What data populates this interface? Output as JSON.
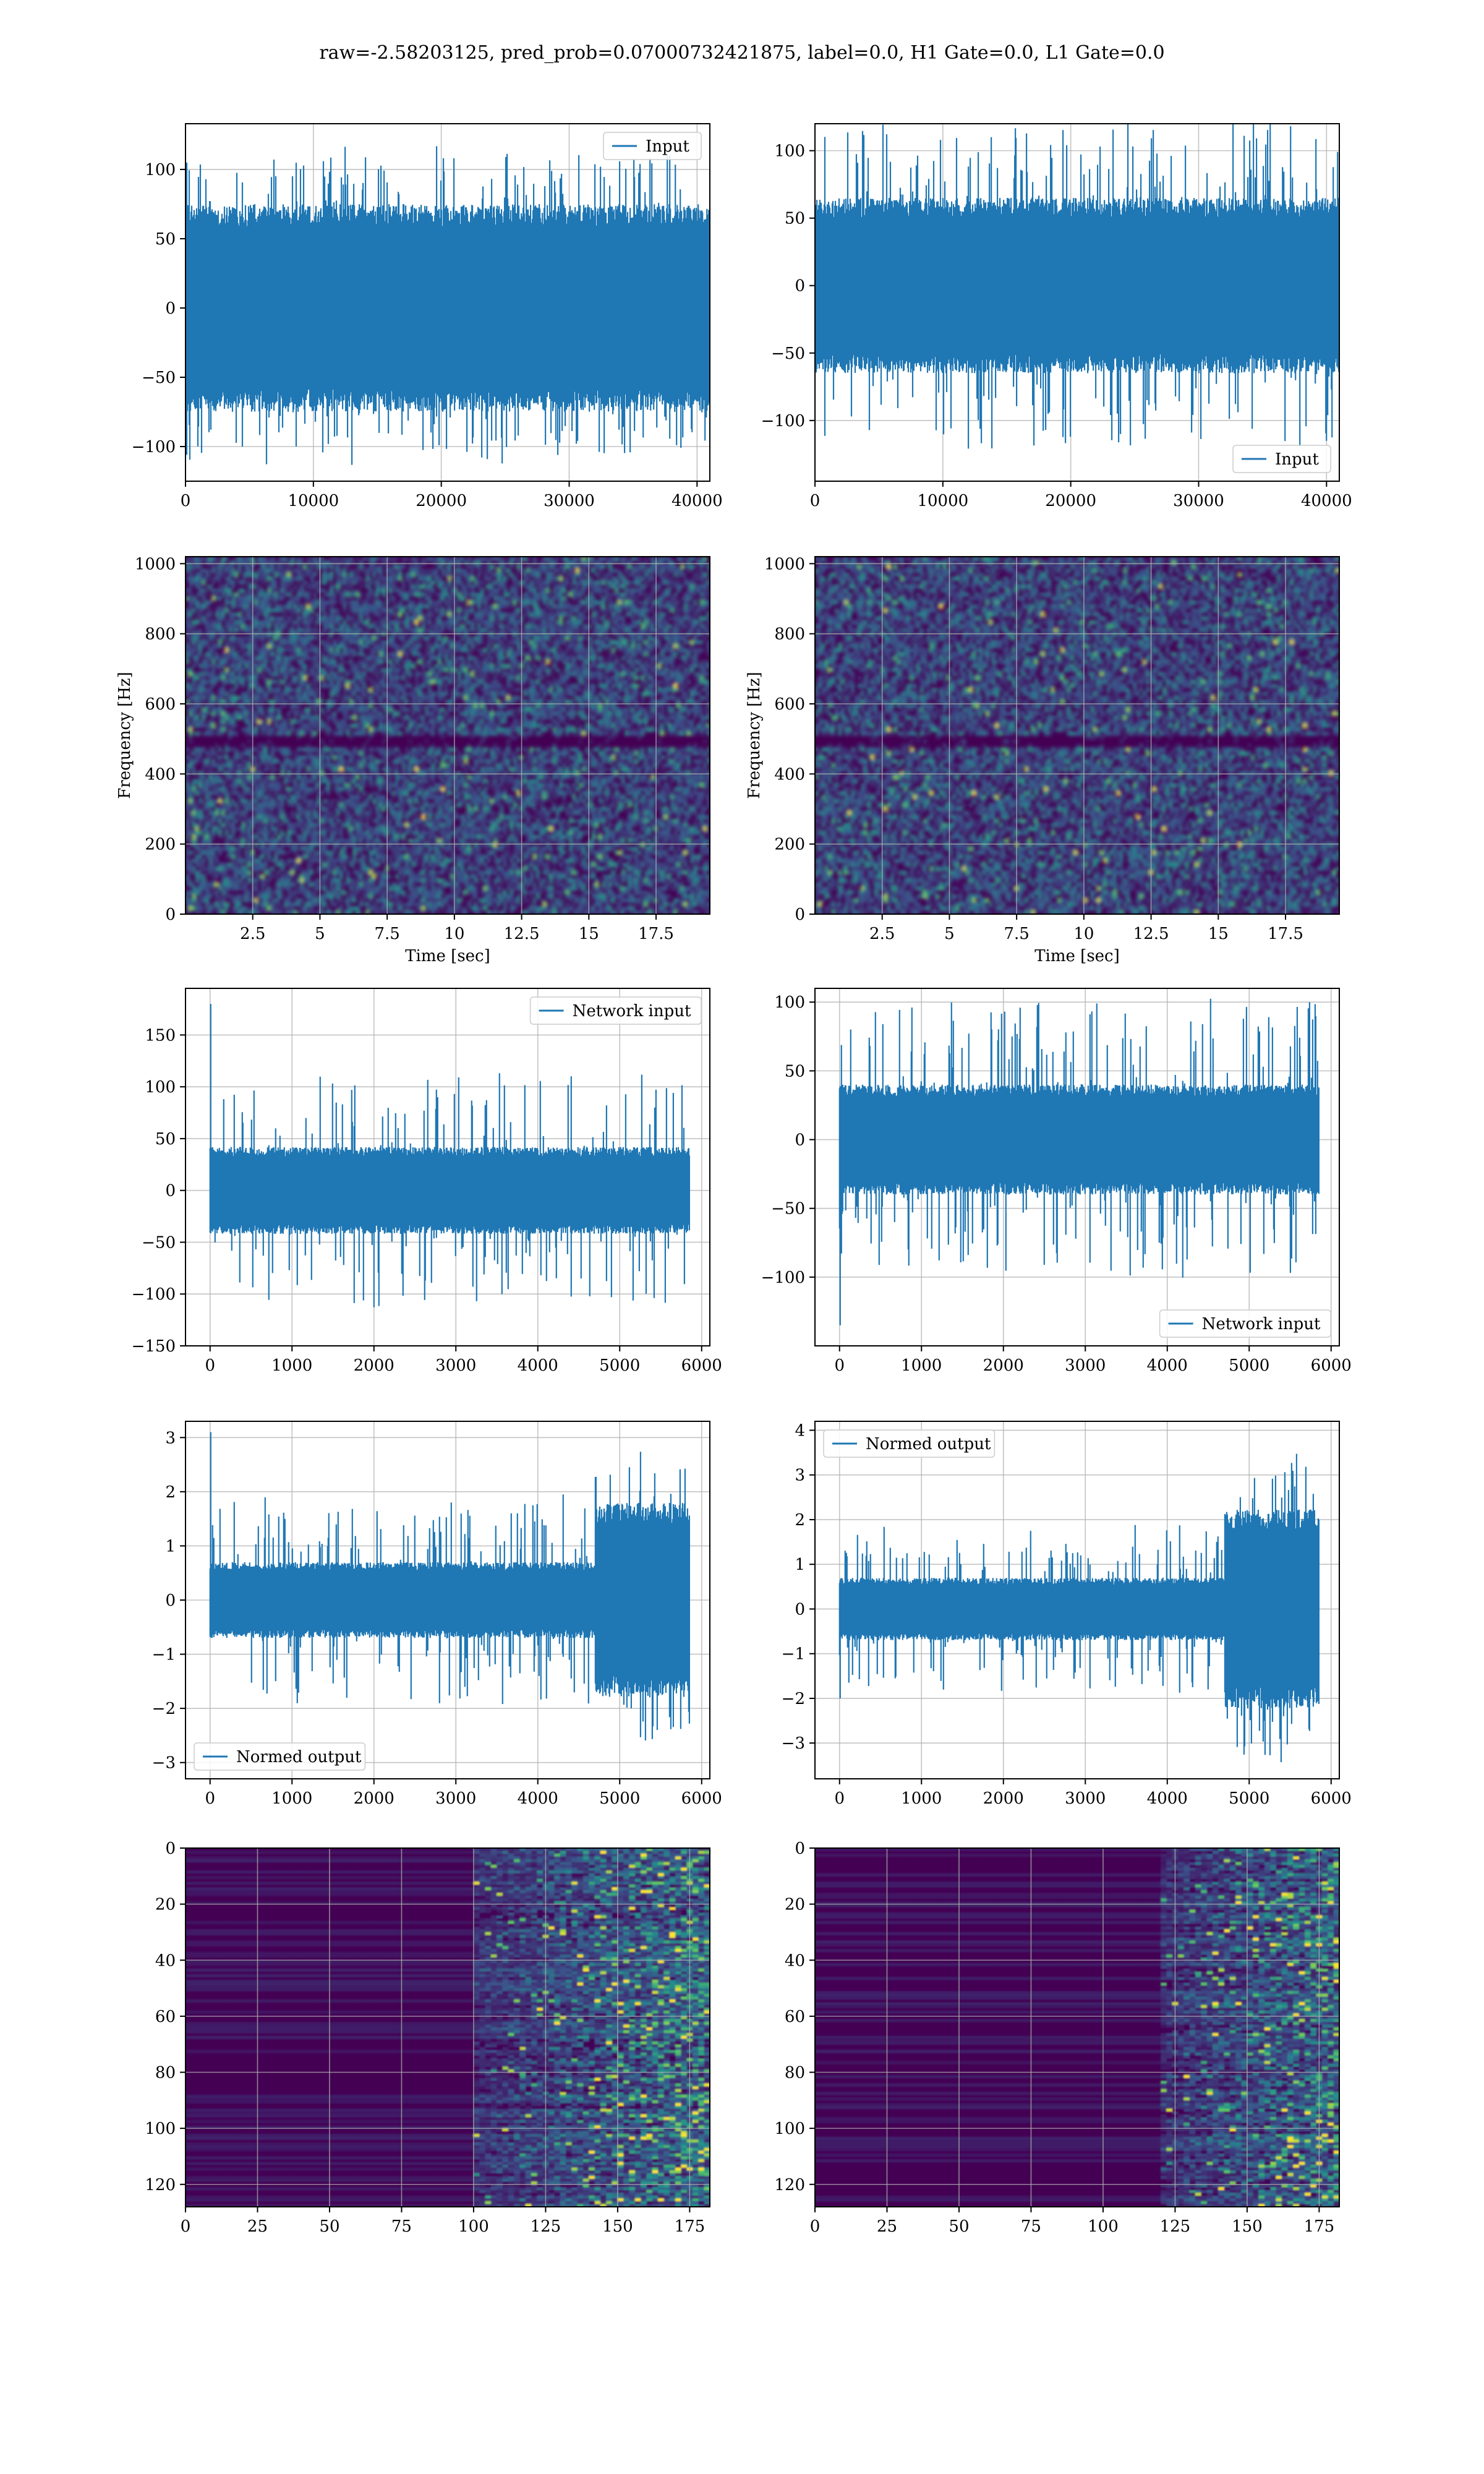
{
  "figure_title": "raw=-2.58203125, pred_prob=0.07000732421875, label=0.0, H1 Gate=0.0, L1 Gate=0.0",
  "colors": {
    "line": "#1f77b4",
    "viridis_bg": "#440154",
    "grid": "#b0b0b0"
  },
  "chart_data": [
    {
      "id": "input-left",
      "type": "line",
      "row": 0,
      "col": 0,
      "xlim": [
        0,
        41000
      ],
      "ylim": [
        -125,
        133
      ],
      "xticks": [
        0,
        10000,
        20000,
        30000,
        40000
      ],
      "yticks": [
        -100,
        -50,
        0,
        50,
        100
      ],
      "series": [
        {
          "name": "Input",
          "n_samples": 40960,
          "envelope_core": 75,
          "envelope_peak": 120
        }
      ],
      "legend": "top-right",
      "grid": true
    },
    {
      "id": "input-right",
      "type": "line",
      "row": 0,
      "col": 1,
      "xlim": [
        0,
        41000
      ],
      "ylim": [
        -145,
        120
      ],
      "xticks": [
        0,
        10000,
        20000,
        30000,
        40000
      ],
      "yticks": [
        -100,
        -50,
        0,
        50,
        100
      ],
      "series": [
        {
          "name": "Input",
          "n_samples": 40960,
          "envelope_core": 65,
          "envelope_peak": 130
        }
      ],
      "legend": "bottom-right",
      "grid": true
    },
    {
      "id": "spectrogram-left",
      "type": "heatmap",
      "row": 1,
      "col": 0,
      "xlabel": "Time [sec]",
      "ylabel": "Frequency [Hz]",
      "xlim": [
        0,
        19.5
      ],
      "ylim": [
        0,
        1020
      ],
      "xticks": [
        2.5,
        5.0,
        7.5,
        10.0,
        12.5,
        15.0,
        17.5
      ],
      "yticks": [
        0,
        200,
        400,
        600,
        800,
        1000
      ],
      "colormap": "viridis",
      "dark_band_hz": 500,
      "grid": true
    },
    {
      "id": "spectrogram-right",
      "type": "heatmap",
      "row": 1,
      "col": 1,
      "xlabel": "Time [sec]",
      "ylabel": "Frequency [Hz]",
      "xlim": [
        0,
        19.5
      ],
      "ylim": [
        0,
        1020
      ],
      "xticks": [
        2.5,
        5.0,
        7.5,
        10.0,
        12.5,
        15.0,
        17.5
      ],
      "yticks": [
        0,
        200,
        400,
        600,
        800,
        1000
      ],
      "colormap": "viridis",
      "dark_band_hz": 500,
      "grid": true
    },
    {
      "id": "network-input-left",
      "type": "line",
      "row": 2,
      "col": 0,
      "xlim": [
        -300,
        6100
      ],
      "ylim": [
        -150,
        195
      ],
      "xticks": [
        0,
        1000,
        2000,
        3000,
        4000,
        5000,
        6000
      ],
      "yticks": [
        -150,
        -100,
        -50,
        0,
        50,
        100,
        150
      ],
      "series": [
        {
          "name": "Network input",
          "n_samples": 5850,
          "envelope_core": 42,
          "envelope_peak": 115,
          "initial_spike": 180
        }
      ],
      "legend": "top-right",
      "grid": true
    },
    {
      "id": "network-input-right",
      "type": "line",
      "row": 2,
      "col": 1,
      "xlim": [
        -300,
        6100
      ],
      "ylim": [
        -150,
        110
      ],
      "xticks": [
        0,
        1000,
        2000,
        3000,
        4000,
        5000,
        6000
      ],
      "yticks": [
        -100,
        -50,
        0,
        50,
        100
      ],
      "series": [
        {
          "name": "Network input",
          "n_samples": 5850,
          "envelope_core": 40,
          "envelope_peak": 105,
          "initial_spike": -135
        }
      ],
      "legend": "bottom-right",
      "grid": true
    },
    {
      "id": "normed-output-left",
      "type": "line",
      "row": 3,
      "col": 0,
      "xlim": [
        -300,
        6100
      ],
      "ylim": [
        -3.3,
        3.3
      ],
      "xticks": [
        0,
        1000,
        2000,
        3000,
        4000,
        5000,
        6000
      ],
      "yticks": [
        -3,
        -2,
        -1,
        0,
        1,
        2,
        3
      ],
      "series": [
        {
          "name": "Normed output",
          "n_samples": 5850,
          "envelope_core": 0.7,
          "envelope_peak": 2.0,
          "burst_start": 4700,
          "burst_amp": 2.9,
          "initial_spike": 3.1
        }
      ],
      "legend": "bottom-left",
      "grid": true
    },
    {
      "id": "normed-output-right",
      "type": "line",
      "row": 3,
      "col": 1,
      "xlim": [
        -300,
        6100
      ],
      "ylim": [
        -3.8,
        4.2
      ],
      "xticks": [
        0,
        1000,
        2000,
        3000,
        4000,
        5000,
        6000
      ],
      "yticks": [
        -3,
        -2,
        -1,
        0,
        1,
        2,
        3,
        4
      ],
      "series": [
        {
          "name": "Normed output",
          "n_samples": 5850,
          "envelope_core": 0.7,
          "envelope_peak": 1.9,
          "burst_start": 4700,
          "burst_amp": 3.6,
          "initial_spike": -2.0
        }
      ],
      "legend": "top-left",
      "grid": true
    },
    {
      "id": "feature-map-left",
      "type": "heatmap",
      "row": 4,
      "col": 0,
      "xlim": [
        0,
        182
      ],
      "ylim_inverted": [
        0,
        128
      ],
      "xticks": [
        0,
        25,
        50,
        75,
        100,
        125,
        150,
        175
      ],
      "yticks": [
        0,
        20,
        40,
        60,
        80,
        100,
        120
      ],
      "colormap": "viridis",
      "activity_onset_col": 100,
      "grid": true
    },
    {
      "id": "feature-map-right",
      "type": "heatmap",
      "row": 4,
      "col": 1,
      "xlim": [
        0,
        182
      ],
      "ylim_inverted": [
        0,
        128
      ],
      "xticks": [
        0,
        25,
        50,
        75,
        100,
        125,
        150,
        175
      ],
      "yticks": [
        0,
        20,
        40,
        60,
        80,
        100,
        120
      ],
      "colormap": "viridis",
      "activity_onset_col": 120,
      "grid": true
    }
  ]
}
